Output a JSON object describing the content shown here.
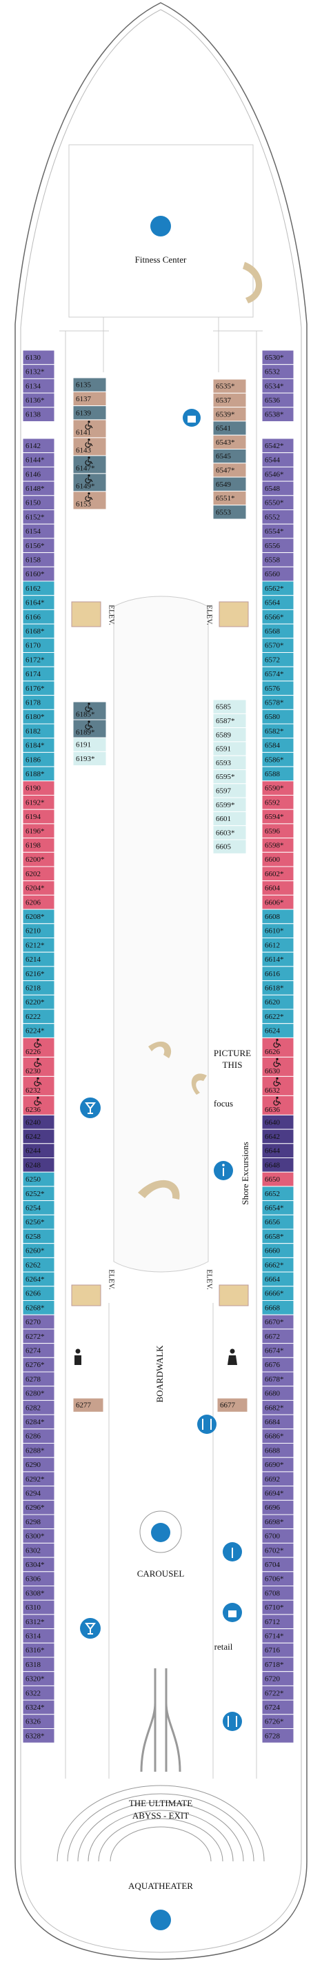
{
  "venues": {
    "fitness_center": "Fitness Center",
    "picture_this": [
      "PICTURE",
      "THIS"
    ],
    "focus": "focus",
    "shore_excursions": "Shore Excursions",
    "boardwalk": "BOARDWALK",
    "carousel": "CAROUSEL",
    "retail": "retail",
    "abyss_exit": [
      "THE ULTIMATE",
      "ABYSS - EXIT"
    ],
    "aquatheater": "AQUATHEATER"
  },
  "elevators": [
    "ELEV.",
    "ELEV.",
    "ELEV.",
    "ELEV."
  ],
  "port_cabins": [
    [
      {
        "color": "#7b6cb3",
        "cabins": [
          "6130",
          "6132*",
          "6134",
          "6136*",
          "6138"
        ]
      }
    ],
    [
      {
        "color": "#7b6cb3",
        "cabins": [
          "6142",
          "6144*",
          "6146",
          "6148*",
          "6150",
          "6152*",
          "6154",
          "6156*",
          "6158",
          "6160*"
        ]
      },
      {
        "color": "#3aaac6",
        "cabins": [
          "6162",
          "6164*",
          "6166",
          "6168*",
          "6170",
          "6172*",
          "6174",
          "6176*",
          "6178",
          "6180*",
          "6182",
          "6184*",
          "6186",
          "6188*"
        ]
      },
      {
        "color": "#e25f79",
        "cabins": [
          "6190",
          "6192*",
          "6194",
          "6196*",
          "6198",
          "6200*",
          "6202",
          "6204*",
          "6206"
        ]
      },
      {
        "color": "#3aaac6",
        "cabins": [
          "6208*",
          "6210",
          "6212*",
          "6214",
          "6216*",
          "6218",
          "6220*",
          "6222",
          "6224*"
        ]
      },
      {
        "color": "#e25f79",
        "accessible": true,
        "cabins": [
          "6226",
          "6230",
          "6232",
          "6236"
        ]
      },
      {
        "color": "#4b3c86",
        "cabins": [
          "6240",
          "6242",
          "6244",
          "6248"
        ]
      },
      {
        "color": "#3aaac6",
        "cabins": [
          "6250",
          "6252*",
          "6254",
          "6256*",
          "6258",
          "6260*",
          "6262",
          "6264*",
          "6266",
          "6268*"
        ]
      },
      {
        "color": "#7b6cb3",
        "cabins": [
          "6270",
          "6272*",
          "6274",
          "6276*",
          "6278",
          "6280*",
          "6282",
          "6284*",
          "6286",
          "6288*",
          "6290",
          "6292*",
          "6294",
          "6296*",
          "6298",
          "6300*",
          "6302",
          "6304*",
          "6306",
          "6308*",
          "6310",
          "6312*",
          "6314",
          "6316*",
          "6318",
          "6320*",
          "6322",
          "6324*",
          "6326",
          "6328*"
        ]
      }
    ]
  ],
  "starboard_cabins": [
    [
      {
        "color": "#7b6cb3",
        "cabins": [
          "6530*",
          "6532",
          "6534*",
          "6536",
          "6538*"
        ]
      }
    ],
    [
      {
        "color": "#7b6cb3",
        "cabins": [
          "6542*",
          "6544",
          "6546*",
          "6548",
          "6550*",
          "6552",
          "6554*",
          "6556",
          "6558",
          "6560"
        ]
      },
      {
        "color": "#3aaac6",
        "cabins": [
          "6562*",
          "6564",
          "6566*",
          "6568",
          "6570*",
          "6572",
          "6574*",
          "6576",
          "6578*",
          "6580",
          "6582*",
          "6584",
          "6586*",
          "6588"
        ]
      },
      {
        "color": "#e25f79",
        "cabins": [
          "6590*",
          "6592",
          "6594*",
          "6596",
          "6598*",
          "6600",
          "6602*",
          "6604",
          "6606*"
        ]
      },
      {
        "color": "#3aaac6",
        "cabins": [
          "6608",
          "6610*",
          "6612",
          "6614*",
          "6616",
          "6618*",
          "6620",
          "6622*",
          "6624"
        ]
      },
      {
        "color": "#e25f79",
        "accessible": true,
        "cabins": [
          "6626",
          "6630",
          "6632",
          "6636"
        ]
      },
      {
        "color": "#4b3c86",
        "cabins": [
          "6640",
          "6642",
          "6644",
          "6648"
        ]
      },
      {
        "color": "#e25f79",
        "cabins": [
          "6650"
        ]
      },
      {
        "color": "#3aaac6",
        "cabins": [
          "6652",
          "6654*",
          "6656",
          "6658*",
          "6660",
          "6662*",
          "6664",
          "6666*",
          "6668"
        ]
      },
      {
        "color": "#7b6cb3",
        "cabins": [
          "6670*",
          "6672",
          "6674*",
          "6676",
          "6678*",
          "6680",
          "6682*",
          "6684",
          "6686*",
          "6688",
          "6690*",
          "6692",
          "6694*",
          "6696",
          "6698*",
          "6700",
          "6702*",
          "6704",
          "6706*",
          "6708",
          "6710*",
          "6712",
          "6714*",
          "6716",
          "6718*",
          "6720",
          "6722*",
          "6724",
          "6726*",
          "6728"
        ]
      }
    ]
  ],
  "inner_blocks": [
    [
      {
        "label": "6135",
        "color": "#5e7e8d"
      },
      {
        "label": "6137",
        "color": "#c8a18d"
      },
      {
        "label": "6139",
        "color": "#5e7e8d"
      },
      {
        "label": "6141",
        "color": "#c8a18d",
        "accessible": true
      },
      {
        "label": "6143",
        "color": "#c8a18d",
        "accessible": true
      },
      {
        "label": "6147*",
        "color": "#5e7e8d",
        "accessible": true
      },
      {
        "label": "6149*",
        "color": "#5e7e8d",
        "accessible": true
      },
      {
        "label": "6153",
        "color": "#c8a18d",
        "accessible": true
      }
    ],
    [
      {
        "label": "6535*",
        "color": "#c8a18d"
      },
      {
        "label": "6537",
        "color": "#c8a18d"
      },
      {
        "label": "6539*",
        "color": "#c8a18d"
      },
      {
        "label": "6541",
        "color": "#5e7e8d"
      },
      {
        "label": "6543*",
        "color": "#c8a18d"
      },
      {
        "label": "6545",
        "color": "#5e7e8d"
      },
      {
        "label": "6547*",
        "color": "#c8a18d"
      },
      {
        "label": "6549",
        "color": "#5e7e8d"
      },
      {
        "label": "6551*",
        "color": "#c8a18d"
      },
      {
        "label": "6553",
        "color": "#5e7e8d"
      }
    ],
    [
      {
        "label": "6185*",
        "color": "#5e7e8d",
        "accessible": true
      },
      {
        "label": "6189*",
        "color": "#5e7e8d",
        "accessible": true
      },
      {
        "label": "6191",
        "color": "#d6efef"
      },
      {
        "label": "6193*",
        "color": "#d6efef"
      }
    ],
    [
      {
        "label": "6585",
        "color": "#d6efef"
      },
      {
        "label": "6587*",
        "color": "#d6efef"
      },
      {
        "label": "6589",
        "color": "#d6efef"
      },
      {
        "label": "6591",
        "color": "#d6efef"
      },
      {
        "label": "6593",
        "color": "#d6efef"
      },
      {
        "label": "6595*",
        "color": "#d6efef"
      },
      {
        "label": "6597",
        "color": "#d6efef"
      },
      {
        "label": "6599*",
        "color": "#d6efef"
      },
      {
        "label": "6601",
        "color": "#d6efef"
      },
      {
        "label": "6603*",
        "color": "#d6efef"
      },
      {
        "label": "6605",
        "color": "#d6efef"
      }
    ],
    [
      {
        "label": "6277",
        "color": "#c8a18d"
      }
    ],
    [
      {
        "label": "6677",
        "color": "#c8a18d"
      }
    ]
  ]
}
